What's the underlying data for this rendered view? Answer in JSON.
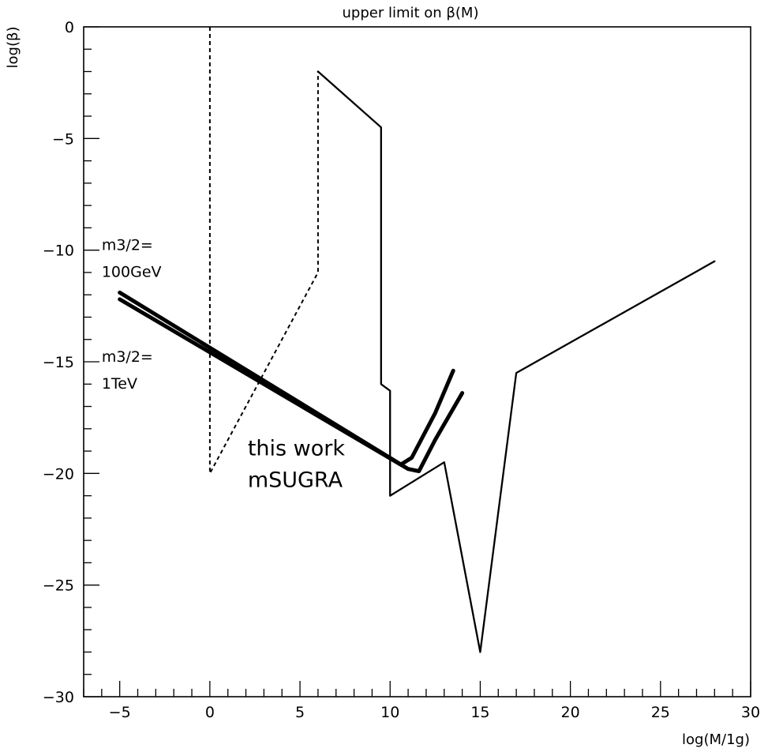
{
  "chart_data": {
    "type": "line",
    "title": "upper limit on β(M)",
    "xlabel": "log(M/1g)",
    "ylabel": "log(β)",
    "xlim": [
      -7,
      30
    ],
    "ylim": [
      -30,
      0
    ],
    "xticks": [
      -5,
      0,
      5,
      10,
      15,
      20,
      25,
      30
    ],
    "yticks": [
      0,
      -5,
      -10,
      -15,
      -20,
      -25,
      -30
    ],
    "grid": false,
    "series": [
      {
        "style": "dashed",
        "points": [
          [
            0,
            0
          ],
          [
            0,
            -20
          ],
          [
            6,
            -11
          ],
          [
            6,
            -2
          ]
        ]
      },
      {
        "style": "solid",
        "points": [
          [
            6,
            -2
          ],
          [
            9.5,
            -4.5
          ],
          [
            9.5,
            -16
          ],
          [
            10,
            -16.3
          ],
          [
            10,
            -21
          ],
          [
            13,
            -19.5
          ],
          [
            15,
            -28
          ],
          [
            17,
            -15.5
          ],
          [
            28,
            -10.5
          ]
        ]
      },
      {
        "style": "thick",
        "points": [
          [
            -5,
            -11.9
          ],
          [
            10.6,
            -19.6
          ],
          [
            11.2,
            -19.3
          ],
          [
            12.5,
            -17.3
          ],
          [
            13.5,
            -15.4
          ]
        ]
      },
      {
        "style": "thick",
        "points": [
          [
            -5,
            -12.2
          ],
          [
            11,
            -19.8
          ],
          [
            11.6,
            -19.9
          ],
          [
            12.5,
            -18.5
          ],
          [
            14,
            -16.4
          ]
        ]
      }
    ],
    "annotations": [
      {
        "id": "m100-line1",
        "text": "m3/2=",
        "x": -6.0,
        "y": -10.0,
        "size": "small"
      },
      {
        "id": "m100-line2",
        "text": "100GeV",
        "x": -6.0,
        "y": -11.2,
        "size": "small"
      },
      {
        "id": "m1t-line1",
        "text": "m3/2=",
        "x": -6.0,
        "y": -15.0,
        "size": "small"
      },
      {
        "id": "m1t-line2",
        "text": "1TeV",
        "x": -6.0,
        "y": -16.2,
        "size": "small"
      },
      {
        "id": "thiswork-line1",
        "text": "this work",
        "x": 2.1,
        "y": -19.2,
        "size": "big"
      },
      {
        "id": "thiswork-line2",
        "text": "mSUGRA",
        "x": 2.1,
        "y": -20.6,
        "size": "big"
      }
    ]
  }
}
